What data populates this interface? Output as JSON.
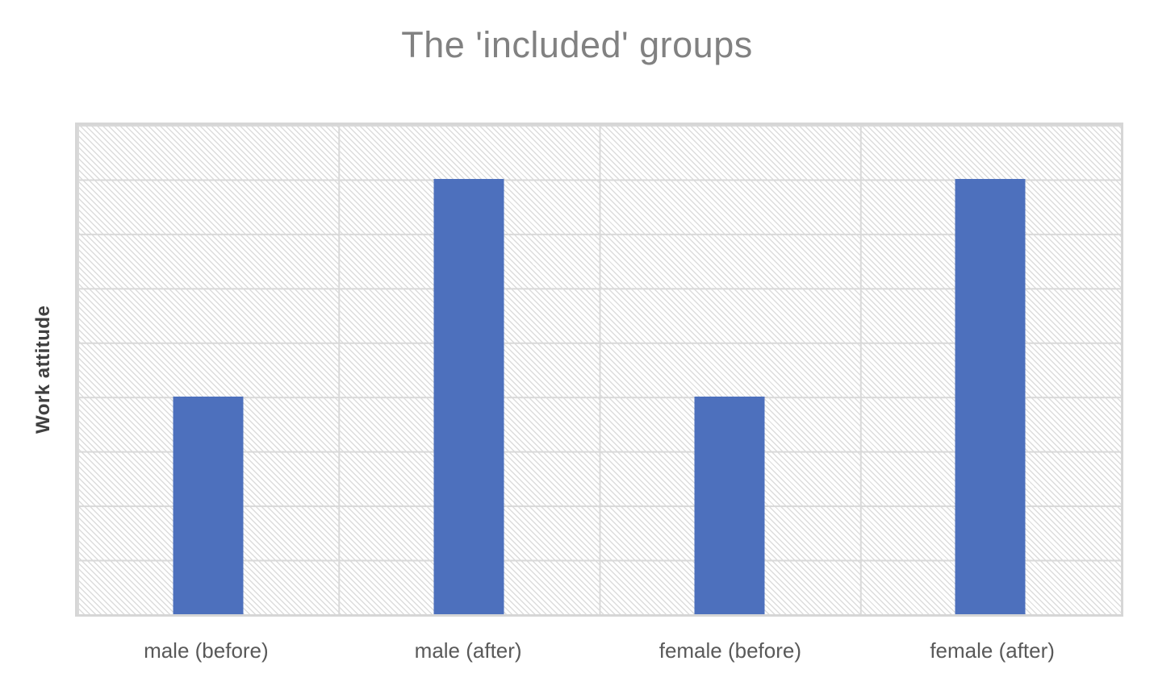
{
  "chart": {
    "title": "The 'included' groups",
    "y_axis_title": "Work attitude"
  },
  "colors": {
    "bar_fill": "#4d70bd",
    "gridline": "#d9d9d9",
    "plot_border": "#d6d6d6",
    "title_text": "#818181",
    "category_text": "#595959",
    "axis_title_text": "#404040"
  },
  "chart_data": {
    "type": "bar",
    "title": "The 'included' groups",
    "categories": [
      "male (before)",
      "male (after)",
      "female (before)",
      "female (after)"
    ],
    "values": [
      2,
      4,
      2,
      4
    ],
    "series_name": "Work attitude",
    "xlabel": "",
    "ylabel": "Work attitude",
    "ylim": [
      0,
      4.5
    ],
    "gridline_step": 0.5,
    "y_tick_labels": "hidden",
    "grid": true,
    "legend": "none",
    "bar_color": "#4d70bd",
    "plot_area_fill": "white with light gray diagonal hatch pattern"
  }
}
